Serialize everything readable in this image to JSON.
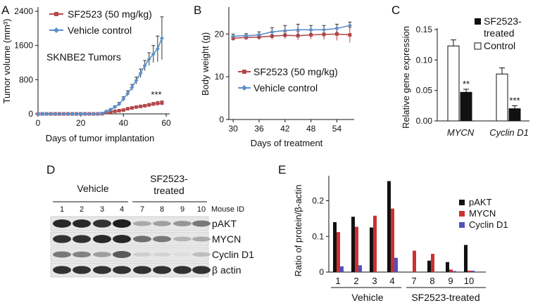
{
  "panel_letters": [
    "A",
    "B",
    "C",
    "D",
    "E"
  ],
  "colors": {
    "sf": "#b5484b",
    "veh": "#5b8fc9",
    "black": "#111111",
    "red": "#cc3030",
    "blue": "#5050c0",
    "grid": "#777777"
  },
  "chart_data": [
    {
      "id": "A",
      "type": "line",
      "xlabel": "Days of tumor implantation",
      "ylabel": "Tumor volume (mm³)",
      "xlim": [
        0,
        60
      ],
      "ylim": [
        0,
        2400
      ],
      "xticks": [
        0,
        20,
        40,
        60
      ],
      "yticks": [
        0,
        800,
        1600,
        2400
      ],
      "annotation": "SKNBE2 Tumors",
      "significance": "***",
      "series": [
        {
          "name": "SF2523 (50 mg/kg)",
          "marker": "square",
          "x": [
            0,
            2,
            4,
            6,
            8,
            10,
            12,
            14,
            16,
            18,
            20,
            22,
            24,
            26,
            28,
            30,
            32,
            34,
            36,
            38,
            40,
            42,
            44,
            46,
            48,
            50,
            52,
            54,
            56,
            58
          ],
          "y": [
            0,
            0,
            0,
            0,
            0,
            0,
            0,
            0,
            0,
            0,
            0,
            0,
            0,
            0,
            0,
            5,
            30,
            45,
            60,
            75,
            90,
            120,
            140,
            160,
            175,
            190,
            210,
            230,
            245,
            255
          ],
          "err": [
            0,
            0,
            0,
            0,
            0,
            0,
            0,
            0,
            0,
            0,
            0,
            0,
            0,
            0,
            0,
            5,
            10,
            10,
            15,
            15,
            15,
            20,
            20,
            25,
            25,
            30,
            35,
            40,
            45,
            50
          ]
        },
        {
          "name": "Vehicle control",
          "marker": "diamond",
          "x": [
            0,
            2,
            4,
            6,
            8,
            10,
            12,
            14,
            16,
            18,
            20,
            22,
            24,
            26,
            28,
            30,
            32,
            34,
            36,
            38,
            40,
            42,
            44,
            46,
            48,
            50,
            52,
            54,
            56,
            58
          ],
          "y": [
            0,
            0,
            0,
            0,
            0,
            0,
            0,
            0,
            0,
            0,
            0,
            0,
            0,
            0,
            0,
            10,
            60,
            100,
            160,
            230,
            350,
            480,
            620,
            780,
            950,
            1130,
            1280,
            1400,
            1520,
            1770
          ],
          "err": [
            0,
            0,
            0,
            0,
            0,
            0,
            0,
            0,
            0,
            0,
            0,
            0,
            0,
            0,
            0,
            5,
            15,
            20,
            30,
            40,
            50,
            60,
            70,
            80,
            100,
            120,
            150,
            200,
            300,
            500
          ]
        }
      ]
    },
    {
      "id": "B",
      "type": "line",
      "xlabel": "Days of treatment",
      "ylabel": "Body weight (g)",
      "xlim": [
        29,
        58
      ],
      "ylim": [
        0,
        25
      ],
      "xticks": [
        30,
        36,
        42,
        48,
        54
      ],
      "yticks": [
        0,
        10,
        20
      ],
      "series": [
        {
          "name": "SF2523 (50 mg/kg)",
          "marker": "square",
          "x": [
            30,
            33,
            36,
            39,
            42,
            45,
            48,
            51,
            54,
            57
          ],
          "y": [
            19.0,
            19.2,
            19.3,
            19.5,
            19.7,
            19.6,
            19.8,
            19.9,
            20.0,
            19.8
          ],
          "err": [
            0.6,
            0.6,
            0.7,
            0.8,
            0.8,
            1.0,
            1.0,
            1.2,
            1.5,
            1.8
          ]
        },
        {
          "name": "Vehicle control",
          "marker": "diamond",
          "x": [
            30,
            33,
            36,
            39,
            42,
            45,
            48,
            51,
            54,
            57
          ],
          "y": [
            19.5,
            19.6,
            19.8,
            20.5,
            20.8,
            21.0,
            21.0,
            21.0,
            21.3,
            22.0
          ],
          "err": [
            0.5,
            0.5,
            0.7,
            1.0,
            1.2,
            1.3,
            1.0,
            1.0,
            1.0,
            0.8
          ]
        }
      ]
    },
    {
      "id": "C",
      "type": "bar",
      "ylabel": "Relative gene expression",
      "ylim": [
        0,
        0.15
      ],
      "yticks": [
        "0.00",
        "0.05",
        "0.10",
        "0.15"
      ],
      "categories": [
        "MYCN",
        "Cyclin D1"
      ],
      "series": [
        {
          "name": "Control",
          "fill": "white",
          "values": [
            0.123,
            0.077
          ],
          "err": [
            0.01,
            0.01
          ]
        },
        {
          "name": "SF2523-treated",
          "fill": "black",
          "values": [
            0.047,
            0.02
          ],
          "err": [
            0.005,
            0.005
          ]
        }
      ],
      "significance": [
        "**",
        "***"
      ],
      "legend": [
        "SF2523-",
        "treated",
        "Control"
      ]
    },
    {
      "id": "E",
      "type": "bar",
      "ylabel": "Ratio of protein/β-actin",
      "ylim": [
        0,
        0.27
      ],
      "yticks": [
        "0",
        "0.1",
        "0.2"
      ],
      "categories": [
        "1",
        "2",
        "3",
        "4",
        "7",
        "8",
        "9",
        "10"
      ],
      "groups": [
        "Vehicle",
        "SF2523-treated"
      ],
      "series": [
        {
          "name": "pAKT",
          "values": [
            0.14,
            0.155,
            0.125,
            0.255,
            0.0,
            0.032,
            0.028,
            0.076
          ]
        },
        {
          "name": "MYCN",
          "values": [
            0.112,
            0.127,
            0.158,
            0.178,
            0.06,
            0.051,
            0.007,
            0.004
          ]
        },
        {
          "name": "Cyclin D1",
          "values": [
            0.016,
            0.019,
            0.0,
            0.04,
            0.0,
            0.0,
            0.003,
            0.004
          ]
        }
      ]
    }
  ],
  "blot": {
    "group_vehicle": "Vehicle",
    "group_treated_1": "SF2523-",
    "group_treated_2": "treated",
    "mouse_id_label": "Mouse ID",
    "lanes": [
      "1",
      "2",
      "3",
      "4",
      "7",
      "8",
      "9",
      "10"
    ],
    "intensity": {
      "pAKT": [
        0.95,
        0.95,
        0.9,
        1.0,
        0.3,
        0.35,
        0.4,
        0.55
      ],
      "MYCN": [
        0.9,
        0.9,
        0.95,
        0.95,
        0.6,
        0.55,
        0.25,
        0.3
      ],
      "Cyclin D1": [
        0.55,
        0.5,
        0.35,
        0.7,
        0.12,
        0.1,
        0.05,
        0.2
      ],
      "β actin": [
        0.9,
        0.9,
        0.9,
        0.9,
        0.9,
        0.9,
        0.9,
        0.9
      ]
    },
    "rows": [
      "pAKT",
      "MYCN",
      "Cyclin D1",
      "β actin"
    ]
  }
}
